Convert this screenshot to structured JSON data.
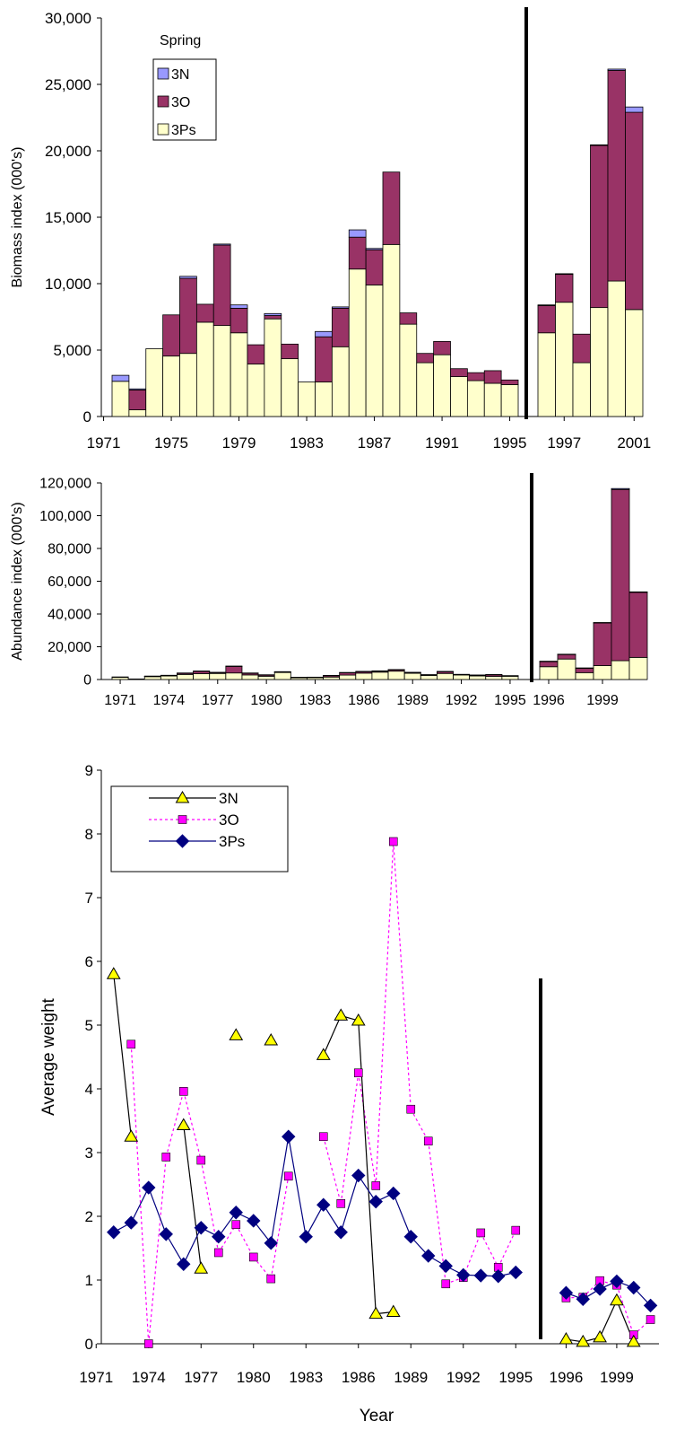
{
  "chart_data": [
    {
      "type": "bar",
      "stacked": true,
      "ylabel": "Biomass index (000's)",
      "xlabel": "",
      "ylim": [
        0,
        30000
      ],
      "yticks": [
        "0",
        "5,000",
        "10,000",
        "15,000",
        "20,000",
        "25,000",
        "30,000"
      ],
      "legend_title": "Spring",
      "legend_position": "top-left",
      "period1": {
        "years": [
          1972,
          1973,
          1974,
          1975,
          1976,
          1977,
          1978,
          1979,
          1980,
          1981,
          1982,
          1983,
          1984,
          1985,
          1986,
          1987,
          1988,
          1989,
          1990,
          1991,
          1992,
          1993,
          1994,
          1995
        ],
        "xtick_labels": [
          "1971",
          "1975",
          "1979",
          "1983",
          "1987",
          "1991",
          "1995"
        ],
        "series": [
          {
            "name": "3Ps",
            "values": [
              2650,
              500,
              5100,
              4550,
              4750,
              7100,
              6850,
              6300,
              3950,
              7350,
              4350,
              2600,
              2600,
              5250,
              11100,
              9900,
              12950,
              6950,
              4050,
              4650,
              3000,
              2700,
              2500,
              2400
            ]
          },
          {
            "name": "3O",
            "values": [
              0,
              1500,
              0,
              3100,
              5650,
              1350,
              6050,
              1850,
              1450,
              250,
              1100,
              0,
              3400,
              2900,
              2400,
              2650,
              5450,
              850,
              700,
              1000,
              600,
              600,
              950,
              350
            ]
          },
          {
            "name": "3N",
            "values": [
              450,
              80,
              0,
              0,
              150,
              0,
              80,
              250,
              0,
              150,
              0,
              0,
              400,
              100,
              550,
              100,
              0,
              0,
              0,
              0,
              0,
              0,
              0,
              0
            ]
          }
        ]
      },
      "period2": {
        "years": [
          1996,
          1997,
          1998,
          1999,
          2000,
          2001
        ],
        "xtick_labels": [
          "1997",
          "2001"
        ],
        "series": [
          {
            "name": "3Ps",
            "values": [
              6300,
              8600,
              4050,
              8200,
              10200,
              8050
            ]
          },
          {
            "name": "3O",
            "values": [
              2050,
              2100,
              2150,
              12200,
              15850,
              14850
            ]
          },
          {
            "name": "3N",
            "values": [
              50,
              50,
              0,
              50,
              100,
              400
            ]
          }
        ]
      }
    },
    {
      "type": "bar",
      "stacked": true,
      "ylabel": "Abundance index (000's)",
      "xlabel": "",
      "ylim": [
        0,
        120000
      ],
      "yticks": [
        "0",
        "20,000",
        "40,000",
        "60,000",
        "80,000",
        "100,000",
        "120,000"
      ],
      "period1": {
        "years": [
          1971,
          1972,
          1973,
          1974,
          1975,
          1976,
          1977,
          1978,
          1979,
          1980,
          1981,
          1982,
          1983,
          1984,
          1985,
          1986,
          1987,
          1988,
          1989,
          1990,
          1991,
          1992,
          1993,
          1994,
          1995
        ],
        "xtick_labels": [
          "1971",
          "1974",
          "1977",
          "1980",
          "1983",
          "1986",
          "1989",
          "1992",
          "1995"
        ],
        "series": [
          {
            "name": "3Ps",
            "values": [
              1500,
              300,
              1800,
              2200,
              3100,
              3600,
              3700,
              4000,
              2800,
              2000,
              4300,
              1100,
              1300,
              1500,
              2700,
              3900,
              4500,
              5100,
              3800,
              2500,
              3700,
              2800,
              2200,
              1900,
              2000
            ]
          },
          {
            "name": "3O",
            "values": [
              0,
              0,
              200,
              300,
              800,
              1500,
              600,
              4100,
              1100,
              800,
              400,
              200,
              100,
              900,
              1500,
              900,
              700,
              900,
              500,
              400,
              1200,
              300,
              500,
              1100,
              300
            ]
          },
          {
            "name": "3N",
            "values": [
              50,
              50,
              100,
              100,
              100,
              100,
              100,
              100,
              100,
              100,
              100,
              100,
              50,
              100,
              100,
              200,
              100,
              100,
              100,
              50,
              50,
              50,
              50,
              50,
              50
            ]
          }
        ]
      },
      "period2": {
        "years": [
          1996,
          1997,
          1998,
          1999,
          2000,
          2001
        ],
        "xtick_labels": [
          "1996",
          "1999"
        ],
        "series": [
          {
            "name": "3Ps",
            "values": [
              7800,
              12500,
              4200,
              8500,
              11500,
              13500
            ]
          },
          {
            "name": "3O",
            "values": [
              3300,
              2900,
              2800,
              26000,
              104500,
              39700
            ]
          },
          {
            "name": "3N",
            "values": [
              50,
              50,
              50,
              300,
              600,
              300
            ]
          }
        ]
      }
    },
    {
      "type": "line",
      "ylabel": "Average weight",
      "xlabel": "Year",
      "ylim": [
        0,
        9
      ],
      "yticks": [
        "0",
        "1",
        "2",
        "3",
        "4",
        "5",
        "6",
        "7",
        "8",
        "9"
      ],
      "legend_position": "top-left",
      "period1": {
        "x": [
          1972,
          1973,
          1974,
          1975,
          1976,
          1977,
          1978,
          1979,
          1980,
          1981,
          1982,
          1983,
          1984,
          1985,
          1986,
          1987,
          1988,
          1989,
          1990,
          1991,
          1992,
          1993,
          1994,
          1995
        ],
        "xtick_labels": [
          "1971",
          "1974",
          "1977",
          "1980",
          "1983",
          "1986",
          "1989",
          "1992",
          "1995"
        ],
        "series": [
          {
            "name": "3N",
            "values": [
              5.8,
              3.25,
              null,
              null,
              3.43,
              1.18,
              null,
              4.84,
              null,
              4.76,
              null,
              null,
              4.53,
              5.15,
              5.07,
              0.47,
              0.5,
              null,
              null,
              null,
              null,
              null,
              null,
              null
            ]
          },
          {
            "name": "3O",
            "values": [
              null,
              4.7,
              0.0,
              2.93,
              3.96,
              2.88,
              1.43,
              1.87,
              1.36,
              1.02,
              2.63,
              null,
              3.25,
              2.2,
              4.25,
              2.48,
              7.88,
              3.68,
              3.18,
              0.94,
              1.04,
              1.74,
              1.2,
              1.78
            ]
          },
          {
            "name": "3Ps",
            "values": [
              1.75,
              1.9,
              2.45,
              1.72,
              1.25,
              1.82,
              1.68,
              2.06,
              1.93,
              1.58,
              3.25,
              1.68,
              2.18,
              1.75,
              2.64,
              2.23,
              2.36,
              1.68,
              1.38,
              1.22,
              1.08,
              1.07,
              1.06,
              1.12
            ]
          }
        ]
      },
      "period2": {
        "x": [
          1996,
          1997,
          1998,
          1999,
          2000,
          2001
        ],
        "xtick_labels": [
          "1996",
          "1999"
        ],
        "series": [
          {
            "name": "3N",
            "values": [
              0.07,
              0.03,
              0.1,
              0.68,
              0.03,
              null
            ]
          },
          {
            "name": "3O",
            "values": [
              0.72,
              0.73,
              0.99,
              0.92,
              0.14,
              0.38
            ]
          },
          {
            "name": "3Ps",
            "values": [
              0.8,
              0.7,
              0.86,
              0.98,
              0.88,
              0.6
            ]
          }
        ]
      }
    }
  ],
  "colors": {
    "3N_fill": "#9999ff",
    "3O_fill": "#993366",
    "3Ps_fill": "#ffffcc",
    "3N_marker": "#ffff00",
    "3O_marker": "#ff00ff",
    "3Ps_line": "#000080"
  }
}
